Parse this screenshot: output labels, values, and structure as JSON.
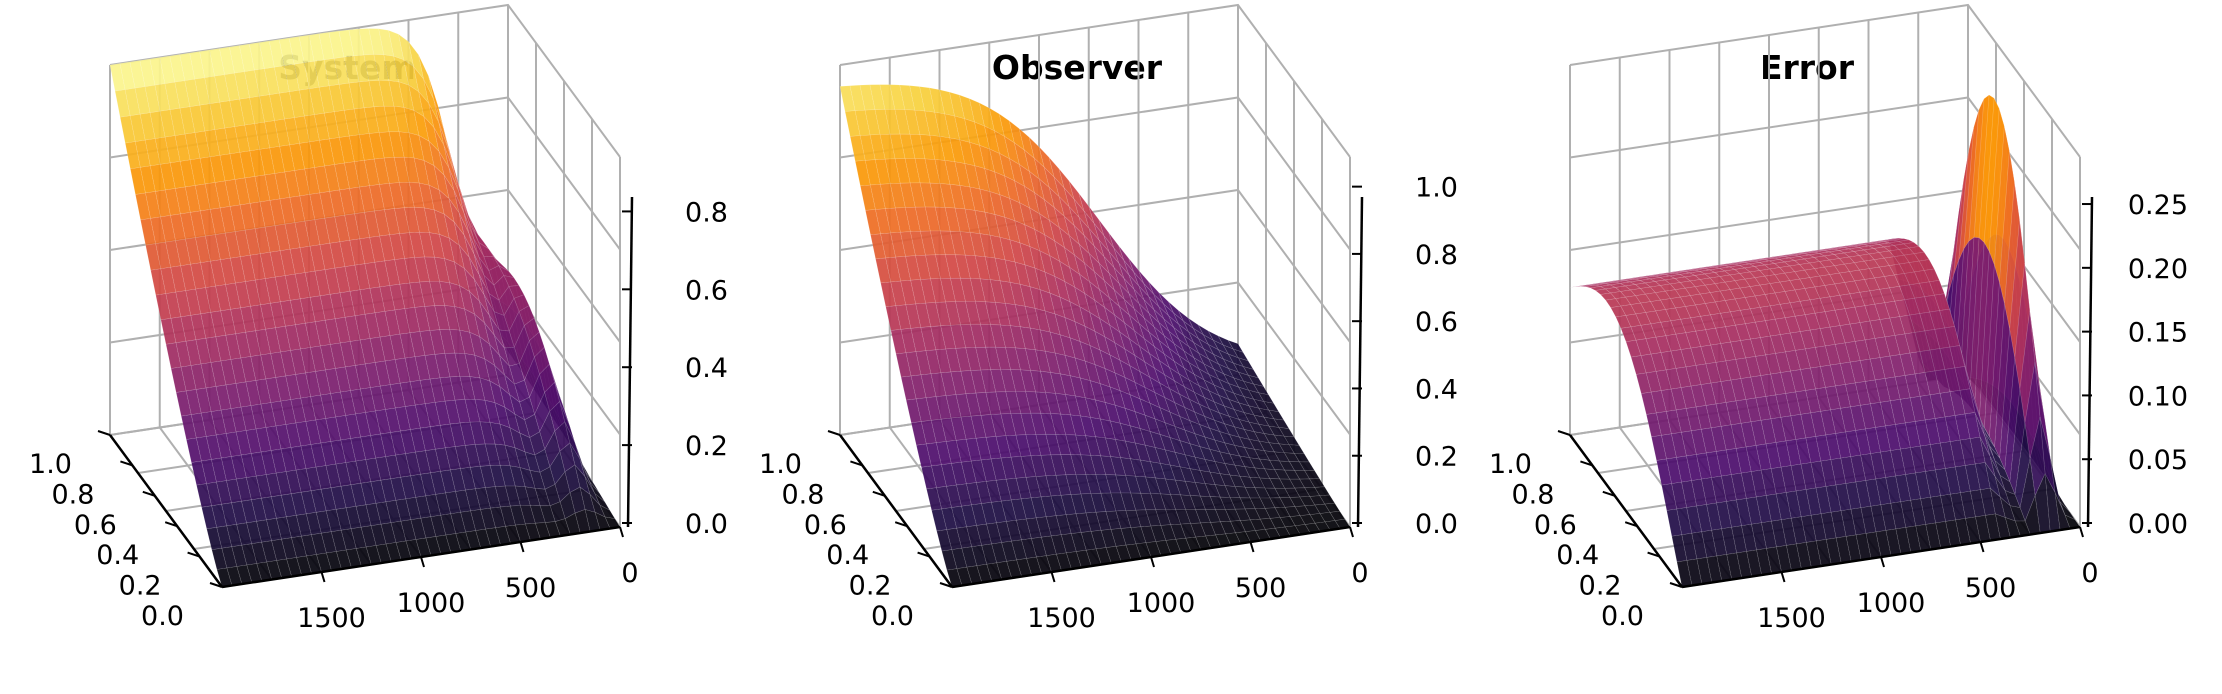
{
  "figure": {
    "panel_titles": [
      "System",
      "Observer",
      "Error"
    ]
  },
  "colors": {
    "grid": "#b0b0b0",
    "axis": "#000000",
    "colormap": "inferno",
    "colormap_stops": [
      "#000004",
      "#1b0c41",
      "#4a0c6b",
      "#781c6d",
      "#a52c60",
      "#cf4446",
      "#ed6925",
      "#fb9b06",
      "#f7d13d",
      "#fcffa4"
    ]
  },
  "chart_data": [
    {
      "type": "surface3d",
      "title": "System",
      "x_axis": {
        "range": [
          0,
          2000
        ],
        "ticks": [
          0,
          500,
          1000,
          1500
        ]
      },
      "y_axis": {
        "range": [
          0,
          1
        ],
        "ticks": [
          0.0,
          0.2,
          0.4,
          0.6,
          0.8,
          1.0
        ]
      },
      "z_axis": {
        "range": [
          0,
          0.95
        ],
        "ticks": [
          0.0,
          0.2,
          0.4,
          0.6,
          0.8
        ]
      },
      "surface": {
        "initial_max": 0.95,
        "drop_center": 250,
        "drop_width": 90,
        "residual_hump": 0.25,
        "hump_x": 150
      },
      "grid": true
    },
    {
      "type": "surface3d",
      "title": "Observer",
      "x_axis": {
        "range": [
          0,
          2000
        ],
        "ticks": [
          0,
          500,
          1000,
          1500
        ]
      },
      "y_axis": {
        "range": [
          0,
          1
        ],
        "ticks": [
          0.0,
          0.2,
          0.4,
          0.6,
          0.8,
          1.0
        ]
      },
      "z_axis": {
        "range": [
          0,
          1.1
        ],
        "ticks": [
          0.0,
          0.2,
          0.4,
          0.6,
          0.8,
          1.0
        ]
      },
      "surface": {
        "initial_max": 1.05,
        "drop_center": 700,
        "drop_width": 300,
        "residual_hump": 0.0,
        "hump_x": 0
      },
      "grid": true
    },
    {
      "type": "surface3d",
      "title": "Error",
      "x_axis": {
        "range": [
          0,
          2000
        ],
        "ticks": [
          0,
          500,
          1000,
          1500
        ]
      },
      "y_axis": {
        "range": [
          0,
          1
        ],
        "ticks": [
          0.0,
          0.2,
          0.4,
          0.6,
          0.8,
          1.0
        ]
      },
      "z_axis": {
        "range": [
          0,
          0.29
        ],
        "ticks": [
          0.0,
          0.05,
          0.1,
          0.15,
          0.2,
          0.25
        ]
      },
      "surface": {
        "plateau": 0.2,
        "peak": 0.28,
        "peak_x": 150
      },
      "grid": true
    }
  ]
}
